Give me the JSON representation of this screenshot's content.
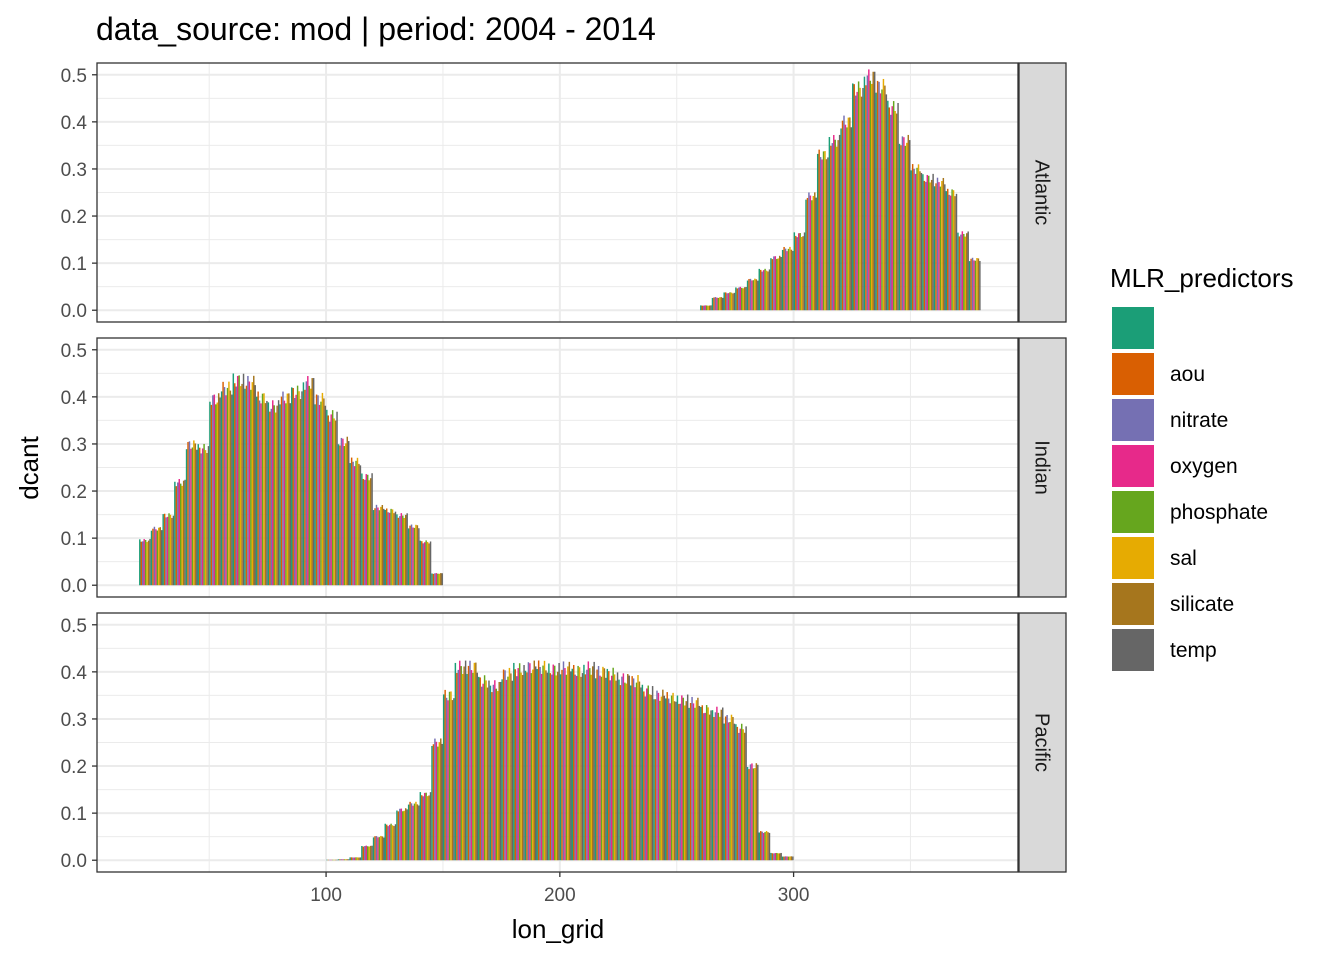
{
  "chart_data": {
    "type": "bar",
    "title": "data_source: mod | period: 2004 - 2014",
    "xlabel": "lon_grid",
    "ylabel": "dcant",
    "xlim": [
      2,
      396
    ],
    "ylim": [
      -0.025,
      0.525
    ],
    "x_ticks": [
      100,
      200,
      300
    ],
    "x_tick_labels": [
      "100",
      "200",
      "300"
    ],
    "y_ticks": [
      0.0,
      0.1,
      0.2,
      0.3,
      0.4,
      0.5
    ],
    "y_tick_labels": [
      "0.0",
      "0.1",
      "0.2",
      "0.3",
      "0.4",
      "0.5"
    ],
    "grid": true,
    "legend_position": "right",
    "legend": {
      "title": "MLR_predictors",
      "entries": [
        {
          "label": "",
          "color": "#1B9E77"
        },
        {
          "label": "aou",
          "color": "#D95F02"
        },
        {
          "label": "nitrate",
          "color": "#7570B3"
        },
        {
          "label": "oxygen",
          "color": "#E7298A"
        },
        {
          "label": "phosphate",
          "color": "#66A61E"
        },
        {
          "label": "sal",
          "color": "#E6AB02"
        },
        {
          "label": "silicate",
          "color": "#A6761D"
        },
        {
          "label": "temp",
          "color": "#666666"
        }
      ]
    },
    "bar_width": 5,
    "panels": [
      {
        "label": "Atlantic",
        "x": [
          262.5,
          267.5,
          272.5,
          277.5,
          282.5,
          287.5,
          292.5,
          297.5,
          302.5,
          307.5,
          312.5,
          317.5,
          322.5,
          327.5,
          332.5,
          337.5,
          342.5,
          347.5,
          352.5,
          357.5,
          362.5,
          367.5,
          372.5,
          377.5
        ],
        "values": [
          0.01,
          0.027,
          0.037,
          0.048,
          0.065,
          0.085,
          0.112,
          0.13,
          0.16,
          0.242,
          0.33,
          0.36,
          0.4,
          0.47,
          0.495,
          0.475,
          0.43,
          0.36,
          0.3,
          0.28,
          0.272,
          0.25,
          0.162,
          0.108
        ]
      },
      {
        "label": "Indian",
        "x": [
          22.5,
          27.5,
          32.5,
          37.5,
          42.5,
          47.5,
          52.5,
          57.5,
          62.5,
          67.5,
          72.5,
          77.5,
          82.5,
          87.5,
          92.5,
          97.5,
          102.5,
          107.5,
          112.5,
          117.5,
          122.5,
          127.5,
          132.5,
          137.5,
          142.5,
          147.5
        ],
        "values": [
          0.095,
          0.12,
          0.148,
          0.218,
          0.298,
          0.29,
          0.395,
          0.418,
          0.435,
          0.43,
          0.398,
          0.38,
          0.398,
          0.41,
          0.43,
          0.395,
          0.36,
          0.305,
          0.262,
          0.23,
          0.165,
          0.158,
          0.148,
          0.125,
          0.092,
          0.025
        ]
      },
      {
        "label": "Pacific",
        "x": [
          102.5,
          107.5,
          112.5,
          117.5,
          122.5,
          127.5,
          132.5,
          137.5,
          142.5,
          147.5,
          152.5,
          157.5,
          162.5,
          167.5,
          172.5,
          177.5,
          182.5,
          187.5,
          192.5,
          197.5,
          202.5,
          207.5,
          212.5,
          217.5,
          222.5,
          227.5,
          232.5,
          237.5,
          242.5,
          247.5,
          252.5,
          257.5,
          262.5,
          267.5,
          272.5,
          277.5,
          282.5,
          287.5,
          292.5,
          297.5
        ],
        "values": [
          0.001,
          0.002,
          0.006,
          0.03,
          0.05,
          0.075,
          0.107,
          0.12,
          0.14,
          0.25,
          0.35,
          0.41,
          0.41,
          0.38,
          0.37,
          0.395,
          0.405,
          0.41,
          0.41,
          0.405,
          0.408,
          0.402,
          0.408,
          0.4,
          0.395,
          0.385,
          0.38,
          0.36,
          0.35,
          0.345,
          0.34,
          0.335,
          0.32,
          0.315,
          0.3,
          0.28,
          0.2,
          0.06,
          0.015,
          0.008
        ]
      }
    ]
  }
}
